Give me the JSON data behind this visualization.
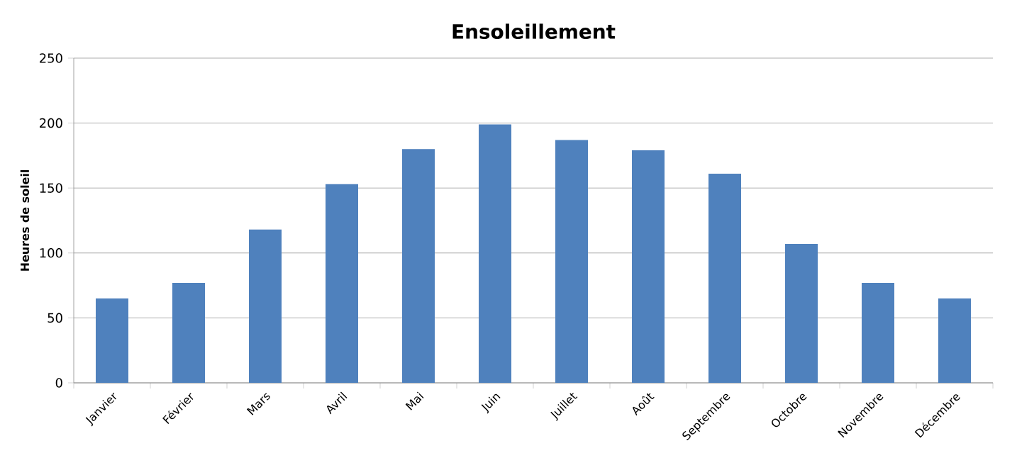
{
  "chart_data": {
    "type": "bar",
    "title": "Ensoleillement",
    "ylabel": "Heures de soleil",
    "categories": [
      "Janvier",
      "Février",
      "Mars",
      "Avril",
      "Mai",
      "Juin",
      "Juillet",
      "Août",
      "Septembre",
      "Octobre",
      "Novembre",
      "Décembre"
    ],
    "values": [
      65,
      77,
      118,
      153,
      180,
      199,
      187,
      179,
      161,
      107,
      77,
      65
    ],
    "color": "#4f81bd",
    "ylim": [
      0,
      250
    ],
    "yticks": [
      0,
      50,
      100,
      150,
      200,
      250
    ],
    "grid": "y"
  }
}
